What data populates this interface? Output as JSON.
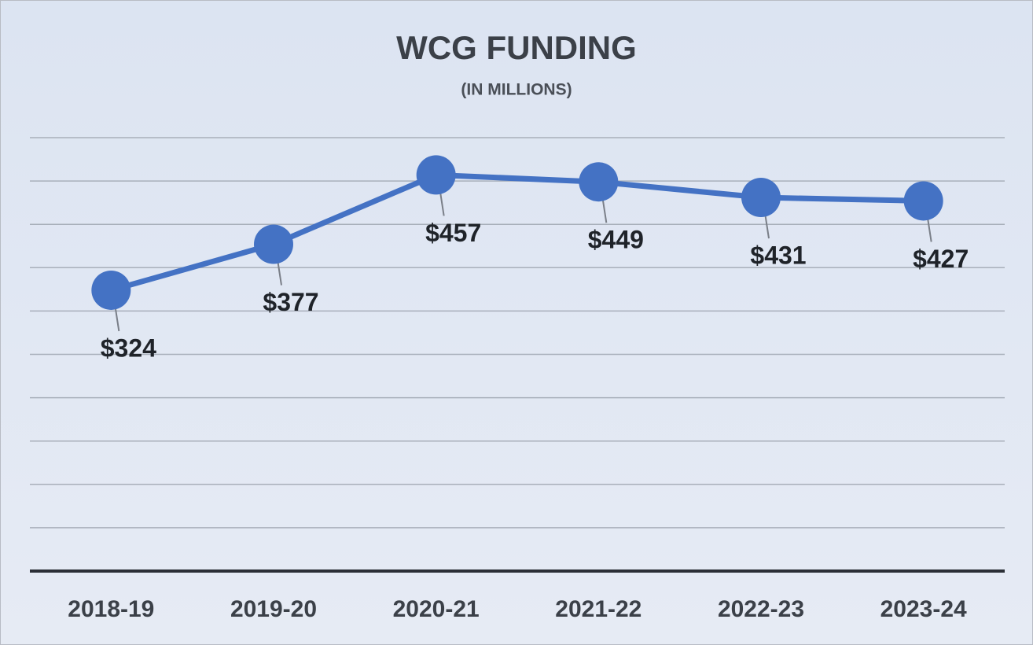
{
  "chart_data": {
    "type": "line",
    "title": "WCG FUNDING",
    "subtitle": "(IN MILLIONS)",
    "categories": [
      "2018-19",
      "2019-20",
      "2020-21",
      "2021-22",
      "2022-23",
      "2023-24"
    ],
    "series": [
      {
        "name": "WCG Funding",
        "color": "#4472c4",
        "values": [
          324,
          377,
          457,
          449,
          431,
          427
        ],
        "value_labels": [
          "$324",
          "$377",
          "$457",
          "$449",
          "$431",
          "$427"
        ]
      }
    ],
    "ylim": [
      0,
      500
    ],
    "yticks": [
      0,
      50,
      100,
      150,
      200,
      250,
      300,
      350,
      400,
      450,
      500
    ],
    "grid": true
  }
}
